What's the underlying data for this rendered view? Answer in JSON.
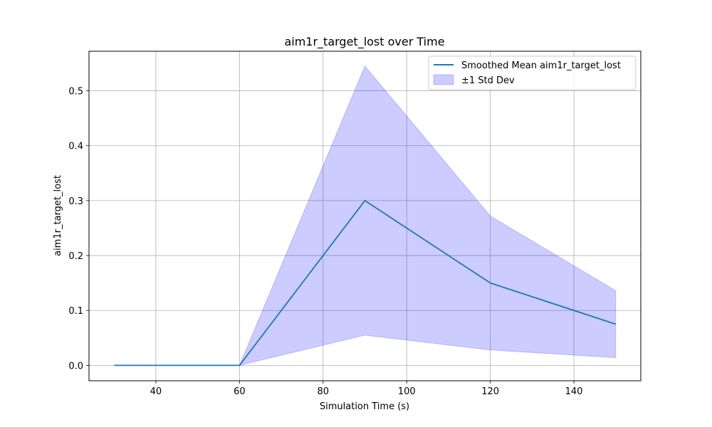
{
  "chart_data": {
    "type": "line",
    "title": "aim1r_target_lost over Time",
    "xlabel": "Simulation Time (s)",
    "ylabel": "aim1r_target_lost",
    "xlim": [
      24,
      156
    ],
    "ylim": [
      -0.028,
      0.572
    ],
    "xticks": [
      40,
      60,
      80,
      100,
      120,
      140
    ],
    "yticks": [
      0.0,
      0.1,
      0.2,
      0.3,
      0.4,
      0.5
    ],
    "ytick_labels": [
      "0.0",
      "0.1",
      "0.2",
      "0.3",
      "0.4",
      "0.5"
    ],
    "grid": true,
    "legend_position": "top-right",
    "series": [
      {
        "name": "Smoothed Mean aim1r_target_lost",
        "kind": "line",
        "color": "#1f77b4",
        "x": [
          30,
          60,
          90,
          120,
          150
        ],
        "values": [
          0.0,
          0.0,
          0.3,
          0.15,
          0.075
        ]
      },
      {
        "name": "±1 Std Dev",
        "kind": "band",
        "color": "#0000ff",
        "x": [
          30,
          60,
          90,
          120,
          150
        ],
        "upper": [
          0.0,
          0.0,
          0.545,
          0.272,
          0.136
        ],
        "lower": [
          0.0,
          0.0,
          0.055,
          0.028,
          0.014
        ]
      }
    ]
  }
}
